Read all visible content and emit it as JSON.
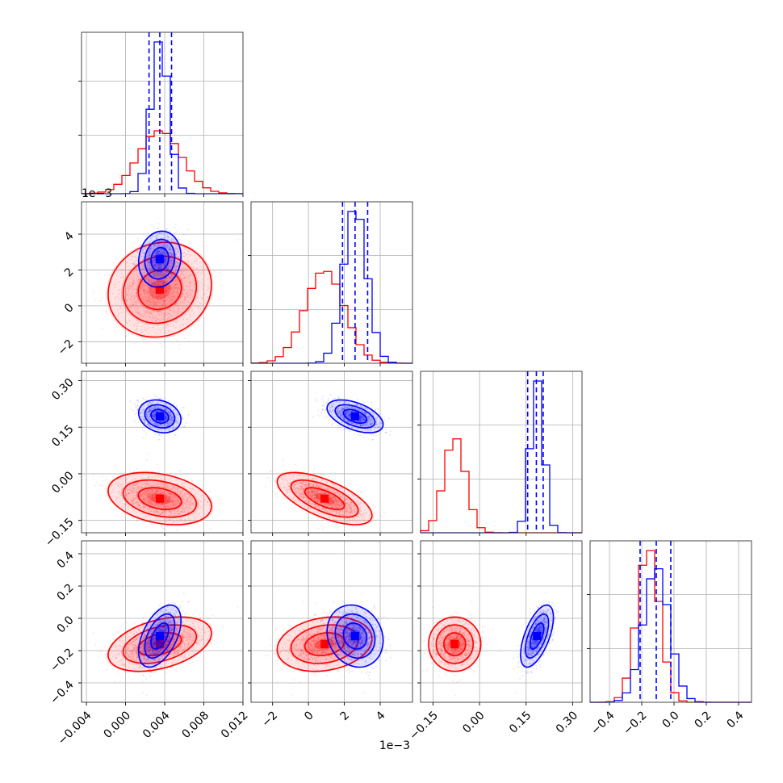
{
  "colors": {
    "series_a": "#ff0000",
    "series_b": "#0000ff",
    "grid": "#b0b0b0"
  },
  "chart_data": {
    "type": "corner",
    "title": "",
    "parameters": [
      {
        "name": "",
        "range": [
          -0.0045,
          0.012
        ],
        "ticks": [
          -0.004,
          0.0,
          0.004,
          0.008,
          0.012
        ],
        "tick_labels": [
          "−0.004",
          "0.000",
          "0.004",
          "0.008",
          "0.012"
        ],
        "offset_label": ""
      },
      {
        "name": "",
        "range": [
          -0.0032,
          0.0058
        ],
        "ticks": [
          -0.002,
          0,
          0.002,
          0.004
        ],
        "tick_labels": [
          "−2",
          "0",
          "2",
          "4"
        ],
        "offset_label": "1e−3"
      },
      {
        "name": "",
        "range": [
          -0.19,
          0.33
        ],
        "ticks": [
          -0.15,
          0.0,
          0.15,
          0.3
        ],
        "tick_labels": [
          "−0.15",
          "0.00",
          "0.15",
          "0.30"
        ],
        "offset_label": ""
      },
      {
        "name": "",
        "range": [
          -0.52,
          0.48
        ],
        "ticks": [
          -0.4,
          -0.2,
          0.0,
          0.2,
          0.4
        ],
        "tick_labels": [
          "−0.4",
          "−0.2",
          "0.0",
          "0.2",
          "0.4"
        ],
        "offset_label": ""
      }
    ],
    "grid": true,
    "series": [
      {
        "name": "",
        "color": "#ff0000",
        "mean": [
          0.0035,
          0.0009,
          -0.08,
          -0.16
        ],
        "std": [
          0.0022,
          0.0011,
          0.035,
          0.07
        ],
        "corr": [
          [
            1,
            0.1,
            -0.3,
            0.4
          ],
          [
            0.1,
            1,
            -0.65,
            0.2
          ],
          [
            -0.3,
            -0.65,
            1,
            0.0
          ],
          [
            0.4,
            0.2,
            0.0,
            1
          ]
        ]
      },
      {
        "name": "",
        "color": "#0000ff",
        "mean": [
          0.0035,
          0.0026,
          0.185,
          -0.11
        ],
        "std": [
          0.0009,
          0.00065,
          0.022,
          0.08
        ],
        "corr": [
          [
            1,
            0.1,
            -0.2,
            0.5
          ],
          [
            0.1,
            1,
            -0.5,
            -0.15
          ],
          [
            -0.2,
            -0.5,
            1,
            0.6
          ],
          [
            0.5,
            -0.15,
            0.6,
            1
          ]
        ]
      }
    ],
    "quantile_lines": {
      "color": "#0000ff",
      "style": "dashed",
      "values": [
        [
          0.0024,
          0.0035,
          0.0047
        ],
        [
          0.0019,
          0.0026,
          0.0033
        ],
        [
          0.155,
          0.183,
          0.205
        ],
        [
          -0.21,
          -0.11,
          -0.02
        ]
      ]
    }
  }
}
